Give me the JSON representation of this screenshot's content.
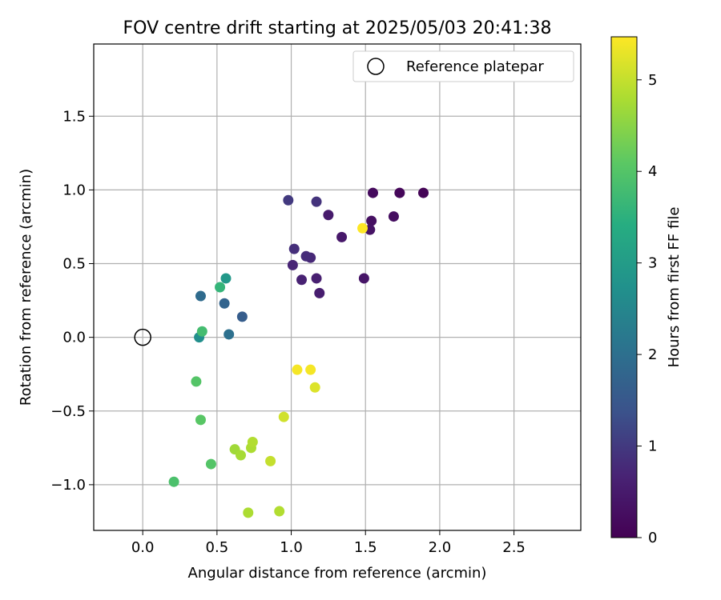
{
  "chart_data": {
    "type": "scatter",
    "title": "FOV centre drift starting at 2025/05/03 20:41:38",
    "xlabel": "Angular distance from reference (arcmin)",
    "ylabel": "Rotation from reference (arcmin)",
    "xlim": [
      -0.33,
      2.95
    ],
    "ylim": [
      -1.31,
      1.99
    ],
    "xticks": [
      0.0,
      0.5,
      1.0,
      1.5,
      2.0,
      2.5
    ],
    "xtick_labels": [
      "0.0",
      "0.5",
      "1.0",
      "1.5",
      "2.0",
      "2.5"
    ],
    "yticks": [
      -1.0,
      -0.5,
      0.0,
      0.5,
      1.0,
      1.5
    ],
    "ytick_labels": [
      "−1.0",
      "−0.5",
      "0.0",
      "0.5",
      "1.0",
      "1.5"
    ],
    "grid": true,
    "legend": {
      "placement": "upper right",
      "entries": [
        {
          "label": "Reference platepar",
          "marker": "open-circle"
        }
      ]
    },
    "reference_point": {
      "x": 0.0,
      "y": 0.0,
      "label": "Reference platepar"
    },
    "colorbar": {
      "label": "Hours from first FF file",
      "colormap": "viridis",
      "range": [
        0,
        5.47
      ],
      "ticks": [
        0,
        1,
        2,
        3,
        4,
        5
      ],
      "tick_labels": [
        "0",
        "1",
        "2",
        "3",
        "4",
        "5"
      ]
    },
    "points": [
      {
        "x": 1.89,
        "y": 0.98,
        "hours": 0.05
      },
      {
        "x": 1.73,
        "y": 0.98,
        "hours": 0.12
      },
      {
        "x": 1.55,
        "y": 0.98,
        "hours": 0.18
      },
      {
        "x": 1.69,
        "y": 0.82,
        "hours": 0.25
      },
      {
        "x": 1.54,
        "y": 0.79,
        "hours": 0.3
      },
      {
        "x": 1.53,
        "y": 0.73,
        "hours": 0.35
      },
      {
        "x": 1.49,
        "y": 0.4,
        "hours": 0.4
      },
      {
        "x": 1.34,
        "y": 0.68,
        "hours": 0.45
      },
      {
        "x": 1.25,
        "y": 0.83,
        "hours": 0.5
      },
      {
        "x": 1.19,
        "y": 0.3,
        "hours": 0.55
      },
      {
        "x": 1.17,
        "y": 0.4,
        "hours": 0.6
      },
      {
        "x": 1.07,
        "y": 0.39,
        "hours": 0.65
      },
      {
        "x": 1.01,
        "y": 0.49,
        "hours": 0.7
      },
      {
        "x": 1.13,
        "y": 0.54,
        "hours": 0.75
      },
      {
        "x": 1.1,
        "y": 0.55,
        "hours": 0.8
      },
      {
        "x": 1.02,
        "y": 0.6,
        "hours": 0.85
      },
      {
        "x": 1.17,
        "y": 0.92,
        "hours": 0.9
      },
      {
        "x": 0.98,
        "y": 0.93,
        "hours": 1.0
      },
      {
        "x": 0.67,
        "y": 0.14,
        "hours": 1.6
      },
      {
        "x": 0.55,
        "y": 0.23,
        "hours": 1.75
      },
      {
        "x": 0.39,
        "y": 0.28,
        "hours": 1.9
      },
      {
        "x": 0.58,
        "y": 0.02,
        "hours": 2.0
      },
      {
        "x": 0.38,
        "y": 0.0,
        "hours": 2.7
      },
      {
        "x": 0.56,
        "y": 0.4,
        "hours": 2.9
      },
      {
        "x": 0.52,
        "y": 0.34,
        "hours": 3.6
      },
      {
        "x": 0.4,
        "y": 0.04,
        "hours": 3.8
      },
      {
        "x": 0.36,
        "y": -0.3,
        "hours": 4.0
      },
      {
        "x": 0.39,
        "y": -0.56,
        "hours": 4.05
      },
      {
        "x": 0.46,
        "y": -0.86,
        "hours": 4.0
      },
      {
        "x": 0.21,
        "y": -0.98,
        "hours": 3.9
      },
      {
        "x": 0.62,
        "y": -0.76,
        "hours": 4.7
      },
      {
        "x": 0.66,
        "y": -0.8,
        "hours": 4.75
      },
      {
        "x": 0.73,
        "y": -0.75,
        "hours": 4.8
      },
      {
        "x": 0.74,
        "y": -0.71,
        "hours": 4.85
      },
      {
        "x": 0.71,
        "y": -1.19,
        "hours": 4.8
      },
      {
        "x": 0.92,
        "y": -1.18,
        "hours": 4.85
      },
      {
        "x": 0.86,
        "y": -0.84,
        "hours": 5.0
      },
      {
        "x": 0.95,
        "y": -0.54,
        "hours": 5.1
      },
      {
        "x": 1.16,
        "y": -0.34,
        "hours": 5.2
      },
      {
        "x": 1.04,
        "y": -0.22,
        "hours": 5.4
      },
      {
        "x": 1.13,
        "y": -0.22,
        "hours": 5.4
      },
      {
        "x": 1.48,
        "y": 0.74,
        "hours": 5.47
      }
    ]
  }
}
